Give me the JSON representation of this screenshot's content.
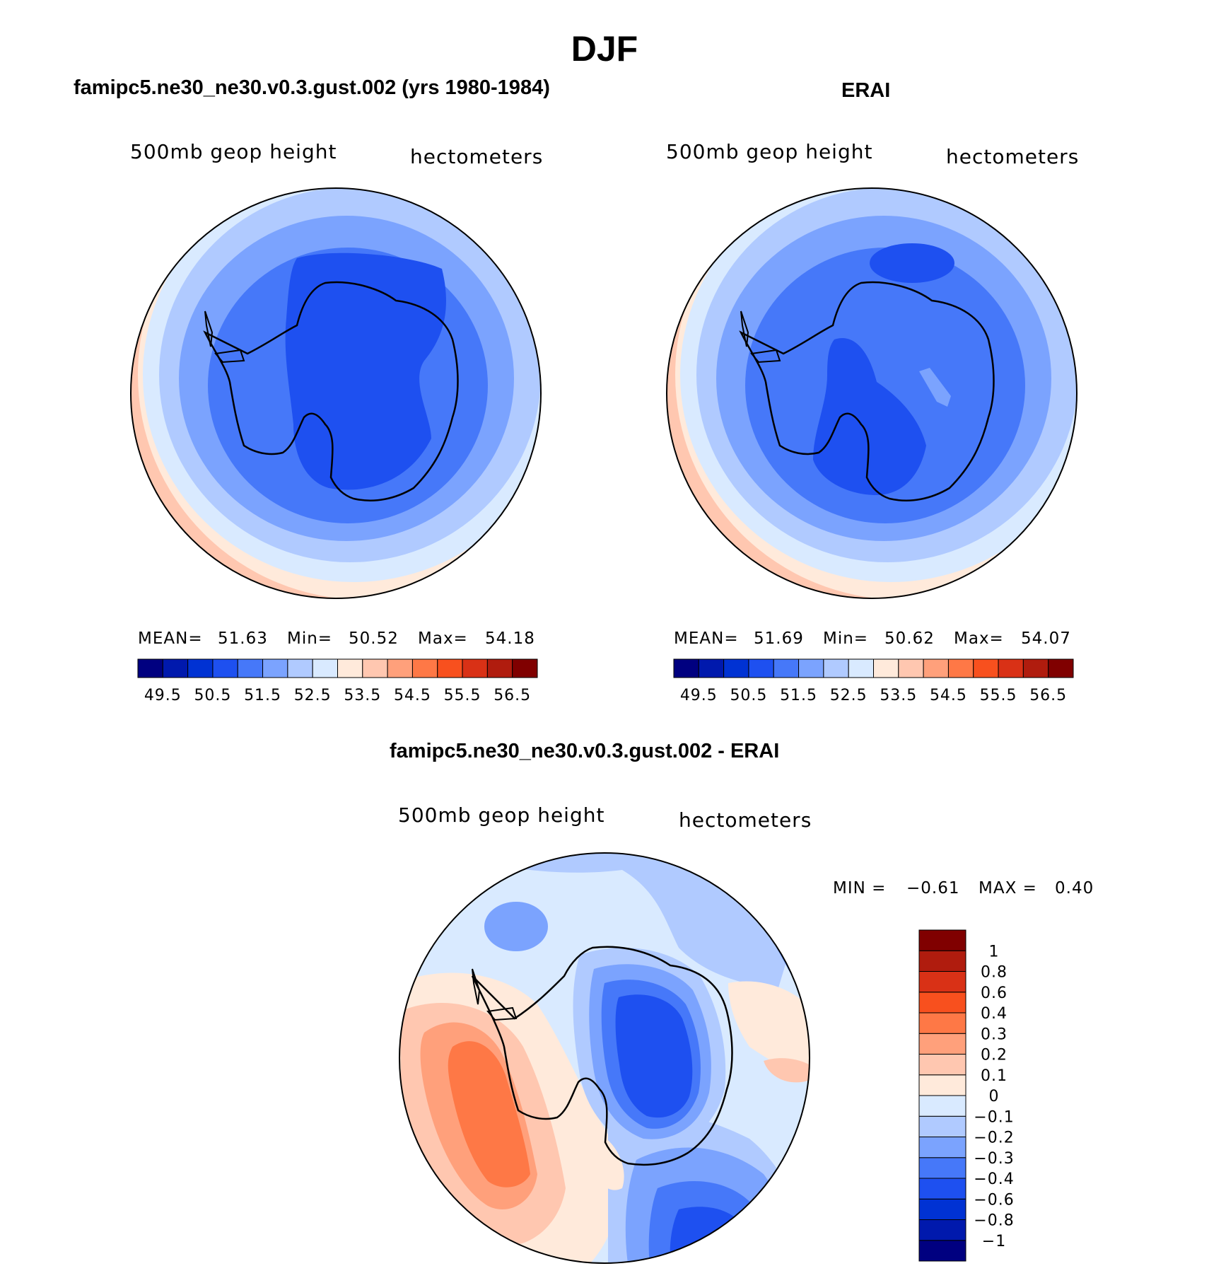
{
  "title": "DJF",
  "panels": {
    "model": {
      "title": "famipc5.ne30_ne30.v0.3.gust.002 (yrs 1980-1984)",
      "variable": "500mb  geop  height",
      "units": "hectometers",
      "stats": {
        "mean_label": "MEAN=",
        "mean": "51.63",
        "min_label": "Min=",
        "min": "50.52",
        "max_label": "Max=",
        "max": "54.18"
      }
    },
    "obs": {
      "title": "ERAI",
      "variable": "500mb  geop  height",
      "units": "hectometers",
      "stats": {
        "mean_label": "MEAN=",
        "mean": "51.69",
        "min_label": "Min=",
        "min": "50.62",
        "max_label": "Max=",
        "max": "54.07"
      }
    },
    "diff": {
      "title": "famipc5.ne30_ne30.v0.3.gust.002 - ERAI",
      "variable": "500mb  geop  height",
      "units": "hectometers",
      "stats": {
        "min_label": "MIN =",
        "min": "−0.61",
        "max_label": "MAX =",
        "max": "0.40"
      }
    }
  },
  "colorbars": {
    "field": {
      "colors": [
        "#000080",
        "#0019ad",
        "#0032d3",
        "#1e50f0",
        "#4678f9",
        "#7ba3fe",
        "#b0caff",
        "#d9eaff",
        "#ffeadb",
        "#ffc7b0",
        "#ffa07b",
        "#fe7846",
        "#f8501e",
        "#d93116",
        "#b01c0e",
        "#800000"
      ],
      "labels": [
        "49.5",
        "50.5",
        "51.5",
        "52.5",
        "53.5",
        "54.5",
        "55.5",
        "56.5"
      ]
    },
    "diff": {
      "colors": [
        "#000080",
        "#0019ad",
        "#0032d3",
        "#1e50f0",
        "#4678f9",
        "#7ba3fe",
        "#b0caff",
        "#d9eaff",
        "#ffeadb",
        "#ffc7b0",
        "#ffa07b",
        "#fe7846",
        "#f8501e",
        "#d93116",
        "#b01c0e",
        "#800000"
      ],
      "labels": [
        "1",
        "0.8",
        "0.6",
        "0.4",
        "0.3",
        "0.2",
        "0.1",
        "0",
        "−0.1",
        "−0.2",
        "−0.3",
        "−0.4",
        "−0.6",
        "−0.8",
        "−1"
      ]
    }
  }
}
